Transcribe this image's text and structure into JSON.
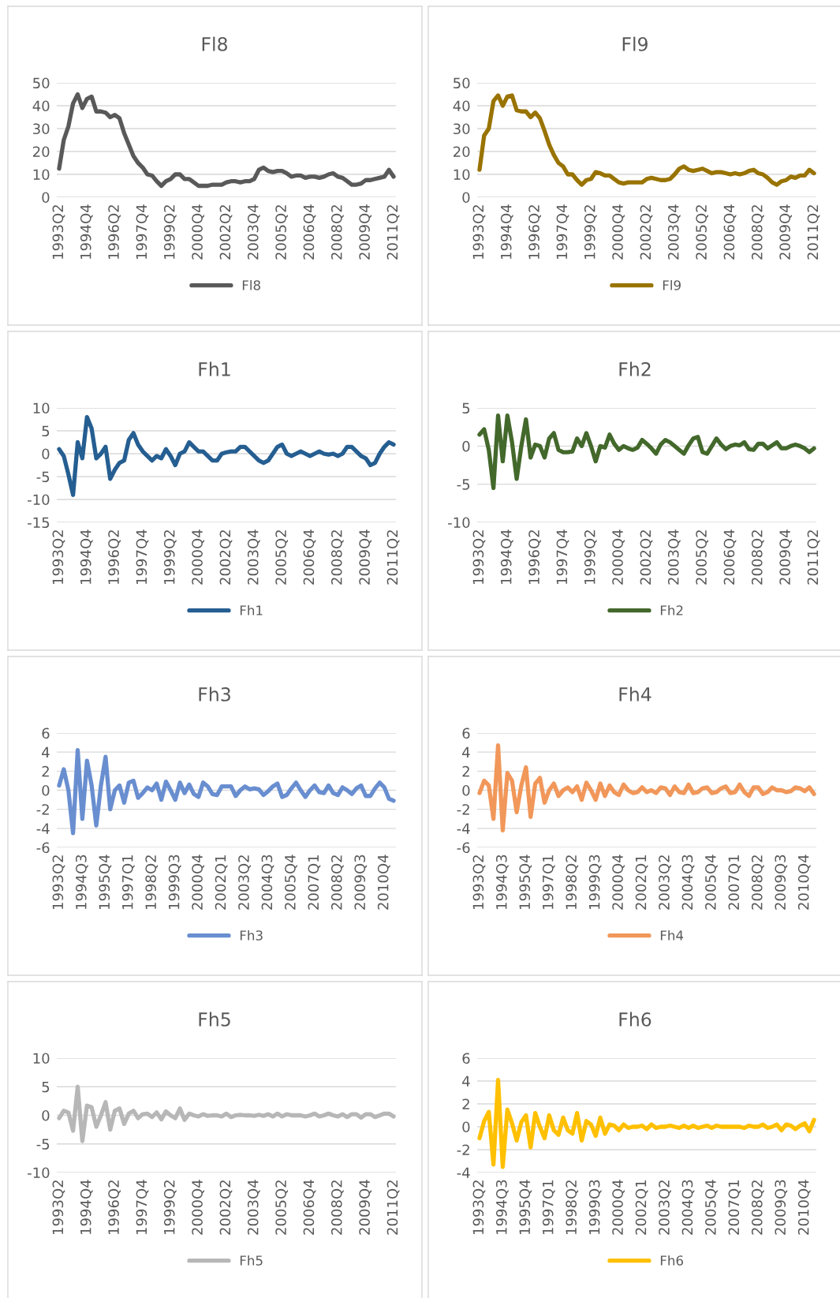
{
  "chart_data": [
    {
      "type": "line",
      "title": "Fl8",
      "legend": "bottom",
      "grid": "y",
      "ylim": [
        0,
        50
      ],
      "yticks": [
        0,
        10,
        20,
        30,
        40,
        50
      ],
      "categories": [
        "1993Q2",
        null,
        null,
        null,
        null,
        null,
        "1994Q4",
        null,
        null,
        null,
        null,
        null,
        "1996Q2",
        null,
        null,
        null,
        null,
        null,
        "1997Q4",
        null,
        null,
        null,
        null,
        null,
        "1999Q2",
        null,
        null,
        null,
        null,
        null,
        "2000Q4",
        null,
        null,
        null,
        null,
        null,
        "2002Q2",
        null,
        null,
        null,
        null,
        null,
        "2003Q4",
        null,
        null,
        null,
        null,
        null,
        "2005Q2",
        null,
        null,
        null,
        null,
        null,
        "2006Q4",
        null,
        null,
        null,
        null,
        null,
        "2008Q2",
        null,
        null,
        null,
        null,
        null,
        "2009Q4",
        null,
        null,
        null,
        null,
        null,
        "2011Q2"
      ],
      "series": [
        {
          "name": "Fl8",
          "color": "#595959",
          "values": [
            12.5,
            25,
            31,
            41,
            45,
            39,
            43,
            44,
            37.5,
            37.5,
            37,
            35,
            36,
            34.5,
            28,
            23,
            18,
            15,
            13,
            10,
            9.5,
            7,
            5,
            7,
            8,
            10,
            10,
            8,
            8,
            6.5,
            5,
            5,
            5,
            5.5,
            5.5,
            5.5,
            6.5,
            7,
            7,
            6.5,
            7,
            7,
            8,
            12,
            13,
            11.5,
            11,
            11.5,
            11.5,
            10.5,
            9,
            9.5,
            9.5,
            8.5,
            9,
            9,
            8.5,
            9,
            10,
            10.5,
            9,
            8.5,
            7,
            5.5,
            5.5,
            6,
            7.5,
            7.5,
            8,
            8.5,
            9,
            12,
            9
          ]
        }
      ]
    },
    {
      "type": "line",
      "title": "Fl9",
      "legend": "bottom",
      "grid": "y",
      "ylim": [
        0,
        50
      ],
      "yticks": [
        0,
        10,
        20,
        30,
        40,
        50
      ],
      "categories": [
        "1993Q2",
        null,
        null,
        null,
        null,
        null,
        "1994Q4",
        null,
        null,
        null,
        null,
        null,
        "1996Q2",
        null,
        null,
        null,
        null,
        null,
        "1997Q4",
        null,
        null,
        null,
        null,
        null,
        "1999Q2",
        null,
        null,
        null,
        null,
        null,
        "2000Q4",
        null,
        null,
        null,
        null,
        null,
        "2002Q2",
        null,
        null,
        null,
        null,
        null,
        "2003Q4",
        null,
        null,
        null,
        null,
        null,
        "2005Q2",
        null,
        null,
        null,
        null,
        null,
        "2006Q4",
        null,
        null,
        null,
        null,
        null,
        "2008Q2",
        null,
        null,
        null,
        null,
        null,
        "2009Q4",
        null,
        null,
        null,
        null,
        null,
        "2011Q2"
      ],
      "series": [
        {
          "name": "Fl9",
          "color": "#997300",
          "values": [
            12,
            27,
            30,
            42,
            44.5,
            40,
            44,
            44.5,
            38,
            37.5,
            37.5,
            35,
            37,
            34.5,
            29,
            23,
            18.5,
            15,
            13.5,
            10,
            10,
            7.5,
            5.5,
            7.5,
            8,
            11,
            10.5,
            9.5,
            9.5,
            8,
            6.5,
            6,
            6.5,
            6.5,
            6.5,
            6.5,
            8,
            8.5,
            8,
            7.5,
            7.5,
            8,
            10,
            12.5,
            13.5,
            12,
            11.5,
            12,
            12.5,
            11.5,
            10.5,
            11,
            11,
            10.5,
            10,
            10.5,
            10,
            10.5,
            11.5,
            12,
            10.5,
            10,
            8.5,
            6.5,
            5.5,
            7,
            7.5,
            9,
            8.5,
            9.5,
            9.5,
            12,
            10.5
          ]
        }
      ]
    },
    {
      "type": "line",
      "title": "Fh1",
      "legend": "bottom",
      "grid": "y",
      "ylim": [
        -15,
        10
      ],
      "yticks": [
        -15,
        -10,
        -5,
        0,
        5,
        10
      ],
      "categories": [
        "1993Q2",
        null,
        null,
        null,
        null,
        null,
        "1994Q4",
        null,
        null,
        null,
        null,
        null,
        "1996Q2",
        null,
        null,
        null,
        null,
        null,
        "1997Q4",
        null,
        null,
        null,
        null,
        null,
        "1999Q2",
        null,
        null,
        null,
        null,
        null,
        "2000Q4",
        null,
        null,
        null,
        null,
        null,
        "2002Q2",
        null,
        null,
        null,
        null,
        null,
        "2003Q4",
        null,
        null,
        null,
        null,
        null,
        "2005Q2",
        null,
        null,
        null,
        null,
        null,
        "2006Q4",
        null,
        null,
        null,
        null,
        null,
        "2008Q2",
        null,
        null,
        null,
        null,
        null,
        "2009Q4",
        null,
        null,
        null,
        null,
        null,
        "2011Q2"
      ],
      "series": [
        {
          "name": "Fh1",
          "color": "#255e91",
          "values": [
            1,
            -0.5,
            -4.5,
            -9,
            2.5,
            -1,
            8,
            5.5,
            -1,
            0,
            1.5,
            -5.5,
            -3.5,
            -2,
            -1.5,
            3,
            4.5,
            2,
            0.5,
            -0.5,
            -1.5,
            -0.5,
            -1,
            1,
            -0.5,
            -2.5,
            0,
            0.5,
            2.5,
            1.5,
            0.5,
            0.5,
            -0.5,
            -1.5,
            -1.5,
            0,
            0.3,
            0.5,
            0.5,
            1.5,
            1.5,
            0.5,
            -0.5,
            -1.5,
            -2,
            -1.5,
            0,
            1.5,
            2,
            0,
            -0.5,
            0,
            0.5,
            0,
            -0.5,
            0,
            0.5,
            0,
            -0.2,
            0,
            -0.5,
            0,
            1.5,
            1.5,
            0.5,
            -0.5,
            -1,
            -2.5,
            -2,
            0,
            1.5,
            2.5,
            2
          ]
        }
      ]
    },
    {
      "type": "line",
      "title": "Fh2",
      "legend": "bottom",
      "grid": "y",
      "ylim": [
        -10,
        5
      ],
      "yticks": [
        -10,
        -5,
        0,
        5
      ],
      "categories": [
        "1993Q2",
        null,
        null,
        null,
        null,
        null,
        "1994Q4",
        null,
        null,
        null,
        null,
        null,
        "1996Q2",
        null,
        null,
        null,
        null,
        null,
        "1997Q4",
        null,
        null,
        null,
        null,
        null,
        "1999Q2",
        null,
        null,
        null,
        null,
        null,
        "2000Q4",
        null,
        null,
        null,
        null,
        null,
        "2002Q2",
        null,
        null,
        null,
        null,
        null,
        "2003Q4",
        null,
        null,
        null,
        null,
        null,
        "2005Q2",
        null,
        null,
        null,
        null,
        null,
        "2006Q4",
        null,
        null,
        null,
        null,
        null,
        "2008Q2",
        null,
        null,
        null,
        null,
        null,
        "2009Q4",
        null,
        null,
        null,
        null,
        null,
        "2011Q2"
      ],
      "series": [
        {
          "name": "Fh2",
          "color": "#43682b",
          "values": [
            1.5,
            2.2,
            -0.5,
            -5.5,
            4,
            -2,
            4,
            0.5,
            -4.3,
            0,
            3.5,
            -1.5,
            0.2,
            0,
            -1.5,
            1,
            1.7,
            -0.5,
            -0.8,
            -0.8,
            -0.7,
            1,
            0,
            1.7,
            0,
            -2,
            0,
            -0.2,
            1.5,
            0.3,
            -0.5,
            0,
            -0.3,
            -0.5,
            -0.2,
            0.8,
            0.3,
            -0.3,
            -1,
            0.2,
            0.8,
            0.5,
            0,
            -0.5,
            -1,
            0.1,
            1,
            1.2,
            -0.8,
            -1,
            0,
            1,
            0.2,
            -0.4,
            0,
            0.2,
            0.1,
            0.5,
            -0.4,
            -0.5,
            0.3,
            0.3,
            -0.3,
            0.1,
            0.5,
            -0.3,
            -0.3,
            0,
            0.2,
            0,
            -0.3,
            -0.8,
            -0.3
          ]
        }
      ]
    },
    {
      "type": "line",
      "title": "Fh3",
      "legend": "bottom",
      "grid": "y",
      "ylim": [
        -6,
        6
      ],
      "yticks": [
        -6,
        -4,
        -2,
        0,
        2,
        4,
        6
      ],
      "categories": [
        "1993Q2",
        null,
        null,
        null,
        null,
        "1994Q3",
        null,
        null,
        null,
        null,
        "1995Q4",
        null,
        null,
        null,
        null,
        "1997Q1",
        null,
        null,
        null,
        null,
        "1998Q2",
        null,
        null,
        null,
        null,
        "1999Q3",
        null,
        null,
        null,
        null,
        "2000Q4",
        null,
        null,
        null,
        null,
        "2002Q1",
        null,
        null,
        null,
        null,
        "2003Q2",
        null,
        null,
        null,
        null,
        "2004Q3",
        null,
        null,
        null,
        null,
        "2005Q4",
        null,
        null,
        null,
        null,
        "2007Q1",
        null,
        null,
        null,
        null,
        "2008Q2",
        null,
        null,
        null,
        null,
        "2009Q3",
        null,
        null,
        null,
        null,
        "2010Q4",
        null,
        null
      ],
      "series": [
        {
          "name": "Fh3",
          "color": "#698ed0",
          "values": [
            0.5,
            2.2,
            0,
            -4.5,
            4.2,
            -3,
            3.1,
            0.5,
            -3.7,
            0.5,
            3.5,
            -2,
            0,
            0.5,
            -1.3,
            0.8,
            1,
            -0.8,
            -0.3,
            0.3,
            0,
            0.7,
            -1,
            0.9,
            0,
            -1,
            0.8,
            -0.3,
            0.6,
            -0.4,
            -0.7,
            0.8,
            0.4,
            -0.4,
            -0.5,
            0.4,
            0.4,
            0.4,
            -0.6,
            0,
            0.4,
            0.1,
            0.2,
            0.1,
            -0.5,
            -0.1,
            0.4,
            0.7,
            -0.7,
            -0.5,
            0.2,
            0.8,
            0,
            -0.7,
            0,
            0.5,
            -0.2,
            -0.3,
            0.5,
            -0.3,
            -0.5,
            0.3,
            0,
            -0.4,
            0.2,
            0.5,
            -0.6,
            -0.6,
            0.2,
            0.8,
            0.3,
            -0.9,
            -1.1
          ]
        }
      ]
    },
    {
      "type": "line",
      "title": "Fh4",
      "legend": "bottom",
      "grid": "y",
      "ylim": [
        -6,
        6
      ],
      "yticks": [
        -6,
        -4,
        -2,
        0,
        2,
        4,
        6
      ],
      "categories": [
        "1993Q2",
        null,
        null,
        null,
        null,
        "1994Q3",
        null,
        null,
        null,
        null,
        "1995Q4",
        null,
        null,
        null,
        null,
        "1997Q1",
        null,
        null,
        null,
        null,
        "1998Q2",
        null,
        null,
        null,
        null,
        "1999Q3",
        null,
        null,
        null,
        null,
        "2000Q4",
        null,
        null,
        null,
        null,
        "2002Q1",
        null,
        null,
        null,
        null,
        "2003Q2",
        null,
        null,
        null,
        null,
        "2004Q3",
        null,
        null,
        null,
        null,
        "2005Q4",
        null,
        null,
        null,
        null,
        "2007Q1",
        null,
        null,
        null,
        null,
        "2008Q2",
        null,
        null,
        null,
        null,
        "2009Q3",
        null,
        null,
        null,
        null,
        "2010Q4",
        null,
        null
      ],
      "series": [
        {
          "name": "Fh4",
          "color": "#f1975a",
          "values": [
            -0.3,
            1,
            0.5,
            -3,
            4.7,
            -4.2,
            1.8,
            1,
            -2.3,
            0.5,
            2.4,
            -2.8,
            0.7,
            1.3,
            -1.3,
            0,
            0.7,
            -0.6,
            0,
            0.3,
            -0.2,
            0.4,
            -1,
            0.8,
            0,
            -1,
            0.7,
            -0.6,
            0.5,
            -0.2,
            -0.5,
            0.6,
            0,
            -0.3,
            -0.2,
            0.3,
            -0.2,
            0,
            -0.3,
            0.3,
            0.2,
            -0.5,
            0.4,
            -0.2,
            -0.3,
            0.6,
            -0.3,
            -0.2,
            0.2,
            0.3,
            -0.3,
            -0.2,
            0.2,
            0.4,
            -0.3,
            -0.2,
            0.6,
            -0.2,
            -0.6,
            0.3,
            0.3,
            -0.4,
            -0.2,
            0.3,
            0,
            0,
            -0.2,
            -0.1,
            0.3,
            0.2,
            -0.1,
            0.3,
            -0.4
          ]
        }
      ]
    },
    {
      "type": "line",
      "title": "Fh5",
      "legend": "bottom",
      "grid": "y",
      "ylim": [
        -10,
        10
      ],
      "yticks": [
        -10,
        -5,
        0,
        5,
        10
      ],
      "categories": [
        "1993Q2",
        null,
        null,
        null,
        null,
        null,
        "1994Q4",
        null,
        null,
        null,
        null,
        null,
        "1996Q2",
        null,
        null,
        null,
        null,
        null,
        "1997Q4",
        null,
        null,
        null,
        null,
        null,
        "1999Q2",
        null,
        null,
        null,
        null,
        null,
        "2000Q4",
        null,
        null,
        null,
        null,
        null,
        "2002Q2",
        null,
        null,
        null,
        null,
        null,
        "2003Q4",
        null,
        null,
        null,
        null,
        null,
        "2005Q2",
        null,
        null,
        null,
        null,
        null,
        "2006Q4",
        null,
        null,
        null,
        null,
        null,
        "2008Q2",
        null,
        null,
        null,
        null,
        null,
        "2009Q4",
        null,
        null,
        null,
        null,
        null,
        "2011Q2"
      ],
      "series": [
        {
          "name": "Fh5",
          "color": "#b7b7b7",
          "values": [
            -0.5,
            0.8,
            0.5,
            -2.7,
            5,
            -4.5,
            1.7,
            1.4,
            -2,
            0,
            2.3,
            -2.5,
            0.8,
            1.2,
            -1.5,
            0.3,
            0.8,
            -0.5,
            0.2,
            0.3,
            -0.3,
            0.5,
            -0.7,
            0.7,
            0,
            -0.5,
            1.2,
            -0.8,
            0.3,
            0,
            -0.2,
            0.2,
            -0.1,
            0,
            0,
            -0.2,
            0.3,
            -0.3,
            0,
            0.1,
            0,
            0,
            -0.1,
            0.1,
            -0.1,
            0.2,
            -0.2,
            0.3,
            -0.2,
            0.2,
            0,
            0,
            0,
            -0.2,
            0,
            0.3,
            -0.2,
            0,
            0.3,
            0,
            -0.2,
            0.2,
            -0.3,
            0.2,
            0.2,
            -0.4,
            0.2,
            0.2,
            -0.3,
            0,
            0.3,
            0.3,
            -0.2
          ]
        }
      ]
    },
    {
      "type": "line",
      "title": "Fh6",
      "legend": "bottom",
      "grid": "y",
      "ylim": [
        -4,
        6
      ],
      "yticks": [
        -4,
        -2,
        0,
        2,
        4,
        6
      ],
      "categories": [
        "1993Q2",
        null,
        null,
        null,
        null,
        "1994Q3",
        null,
        null,
        null,
        null,
        "1995Q4",
        null,
        null,
        null,
        null,
        "1997Q1",
        null,
        null,
        null,
        null,
        "1998Q2",
        null,
        null,
        null,
        null,
        "1999Q3",
        null,
        null,
        null,
        null,
        "2000Q4",
        null,
        null,
        null,
        null,
        "2002Q1",
        null,
        null,
        null,
        null,
        "2003Q2",
        null,
        null,
        null,
        null,
        "2004Q3",
        null,
        null,
        null,
        null,
        "2005Q4",
        null,
        null,
        null,
        null,
        "2007Q1",
        null,
        null,
        null,
        null,
        "2008Q2",
        null,
        null,
        null,
        null,
        "2009Q3",
        null,
        null,
        null,
        null,
        "2010Q4",
        null,
        null
      ],
      "series": [
        {
          "name": "Fh6",
          "color": "#ffc000",
          "values": [
            -1,
            0.5,
            1.3,
            -3.3,
            4.1,
            -3.5,
            1.5,
            0.3,
            -1.2,
            0.4,
            1,
            -1.8,
            1.2,
            0,
            -1,
            1,
            -0.3,
            -0.7,
            0.8,
            -0.3,
            -0.6,
            1.2,
            -1.2,
            0.5,
            0.2,
            -0.8,
            0.8,
            -0.6,
            0.2,
            0.1,
            -0.3,
            0.2,
            -0.1,
            0,
            0,
            0.1,
            -0.2,
            0.2,
            -0.1,
            0,
            0,
            0.1,
            0,
            -0.1,
            0.1,
            -0.1,
            0.1,
            -0.1,
            0,
            0.1,
            -0.1,
            0.1,
            0,
            0,
            0,
            0,
            0,
            -0.1,
            0.1,
            0,
            0,
            0.2,
            -0.1,
            0,
            0.2,
            -0.3,
            0.2,
            0.1,
            -0.2,
            0.1,
            0.3,
            -0.4,
            0.6
          ]
        }
      ]
    }
  ]
}
